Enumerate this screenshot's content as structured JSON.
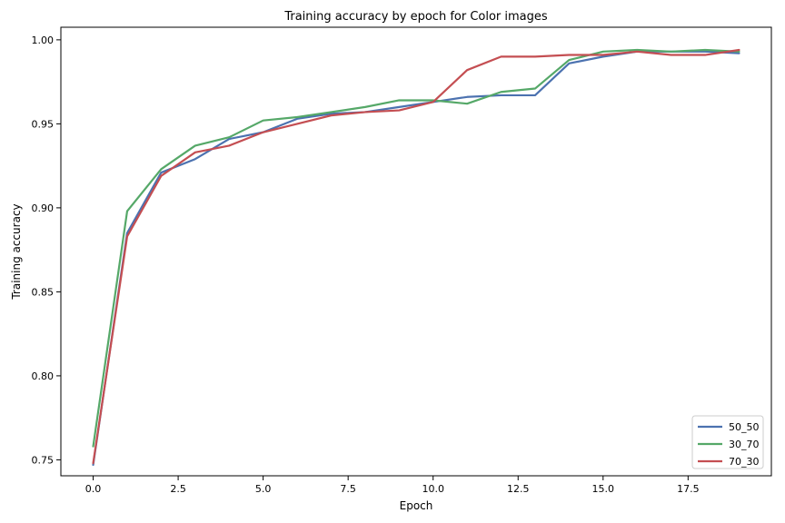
{
  "chart_data": {
    "type": "line",
    "title": "Training accuracy by epoch for Color images",
    "xlabel": "Epoch",
    "ylabel": "Training accuracy",
    "xlim": [
      -0.95,
      19.95
    ],
    "ylim": [
      0.7405,
      1.0075
    ],
    "x_ticks": [
      0.0,
      2.5,
      5.0,
      7.5,
      10.0,
      12.5,
      15.0,
      17.5
    ],
    "x_tick_labels": [
      "0.0",
      "2.5",
      "5.0",
      "7.5",
      "10.0",
      "12.5",
      "15.0",
      "17.5"
    ],
    "y_ticks": [
      0.75,
      0.8,
      0.85,
      0.9,
      0.95,
      1.0
    ],
    "y_tick_labels": [
      "0.75",
      "0.80",
      "0.85",
      "0.90",
      "0.95",
      "1.00"
    ],
    "grid": false,
    "legend_position": "lower-right",
    "x": [
      0,
      1,
      2,
      3,
      4,
      5,
      6,
      7,
      8,
      9,
      10,
      11,
      12,
      13,
      14,
      15,
      16,
      17,
      18,
      19
    ],
    "series": [
      {
        "name": "50_50",
        "color": "#4c72b0",
        "values": [
          0.747,
          0.885,
          0.921,
          0.929,
          0.941,
          0.945,
          0.953,
          0.956,
          0.957,
          0.96,
          0.963,
          0.966,
          0.967,
          0.967,
          0.986,
          0.99,
          0.993,
          0.993,
          0.993,
          0.992
        ]
      },
      {
        "name": "30_70",
        "color": "#55a868",
        "values": [
          0.758,
          0.898,
          0.923,
          0.937,
          0.942,
          0.952,
          0.954,
          0.957,
          0.96,
          0.964,
          0.964,
          0.962,
          0.969,
          0.971,
          0.988,
          0.993,
          0.994,
          0.993,
          0.994,
          0.993
        ]
      },
      {
        "name": "70_30",
        "color": "#c44e52",
        "values": [
          0.748,
          0.883,
          0.919,
          0.933,
          0.937,
          0.945,
          0.95,
          0.955,
          0.957,
          0.958,
          0.963,
          0.982,
          0.99,
          0.99,
          0.991,
          0.991,
          0.993,
          0.991,
          0.991,
          0.994
        ]
      }
    ]
  }
}
